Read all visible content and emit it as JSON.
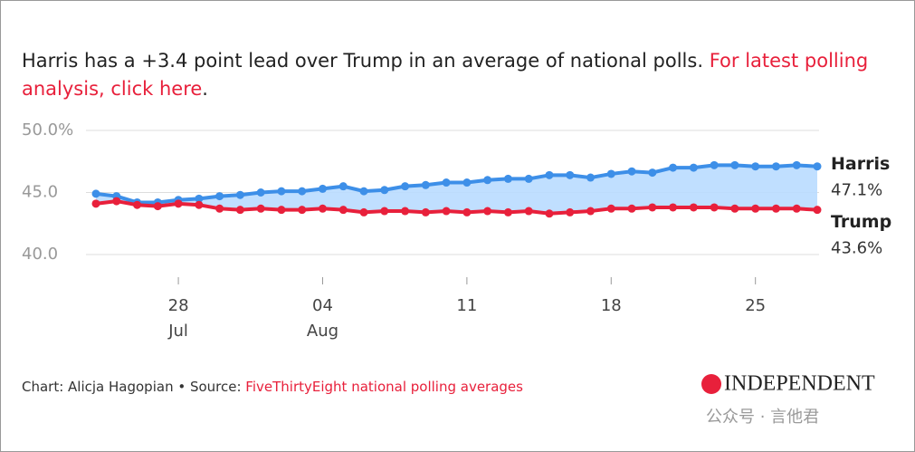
{
  "chart_data": {
    "type": "line",
    "title": "Harris has a +3.4 point lead over Trump in an average of national polls.",
    "title_link": "For latest polling analysis, click here",
    "title_end": ".",
    "categories": [
      null,
      null,
      null,
      null,
      "28",
      null,
      null,
      null,
      null,
      null,
      null,
      "04",
      null,
      null,
      null,
      null,
      null,
      null,
      "11",
      null,
      null,
      null,
      null,
      null,
      null,
      "18",
      null,
      null,
      null,
      null,
      null,
      null,
      "25",
      null,
      null,
      null
    ],
    "category_months": [
      null,
      null,
      null,
      null,
      "Jul",
      null,
      null,
      null,
      null,
      null,
      null,
      "Aug",
      null,
      null,
      null,
      null,
      null,
      null,
      null,
      null,
      null,
      null,
      null,
      null,
      null,
      null,
      null,
      null,
      null,
      null,
      null,
      null,
      null,
      null,
      null,
      null
    ],
    "series": [
      {
        "name": "Harris",
        "color": "#3d8fe8",
        "values": [
          44.9,
          44.7,
          44.2,
          44.2,
          44.4,
          44.5,
          44.7,
          44.8,
          45.0,
          45.1,
          45.1,
          45.3,
          45.5,
          45.1,
          45.2,
          45.5,
          45.6,
          45.8,
          45.8,
          46.0,
          46.1,
          46.1,
          46.4,
          46.4,
          46.2,
          46.5,
          46.7,
          46.6,
          47.0,
          47.0,
          47.2,
          47.2,
          47.1,
          47.1,
          47.2,
          47.1
        ],
        "value_labels": [
          null,
          null,
          null,
          null,
          null,
          null,
          null,
          null,
          null,
          null,
          null,
          null,
          null,
          null,
          null,
          null,
          null,
          null,
          null,
          null,
          null,
          null,
          null,
          null,
          null,
          null,
          null,
          null,
          null,
          null,
          null,
          null,
          null,
          null,
          null,
          "47.1%"
        ]
      },
      {
        "name": "Trump",
        "color": "#e8203b",
        "values": [
          44.1,
          44.3,
          44.0,
          43.9,
          44.1,
          44.0,
          43.7,
          43.6,
          43.7,
          43.6,
          43.6,
          43.7,
          43.6,
          43.4,
          43.5,
          43.5,
          43.4,
          43.5,
          43.4,
          43.5,
          43.4,
          43.5,
          43.3,
          43.4,
          43.5,
          43.7,
          43.7,
          43.8,
          43.8,
          43.8,
          43.8,
          43.7,
          43.7,
          43.7,
          43.7,
          43.6
        ],
        "value_labels": [
          null,
          null,
          null,
          null,
          null,
          null,
          null,
          null,
          null,
          null,
          null,
          null,
          null,
          null,
          null,
          null,
          null,
          null,
          null,
          null,
          null,
          null,
          null,
          null,
          null,
          null,
          null,
          null,
          null,
          null,
          null,
          null,
          null,
          null,
          null,
          "43.6%"
        ]
      }
    ],
    "area_color": "#b9dcff",
    "ylim": [
      39,
      50.5
    ],
    "yticks": [
      {
        "value": 40,
        "label": "40.0"
      },
      {
        "value": 45,
        "label": "45.0"
      },
      {
        "value": 50,
        "label": "50.0%"
      }
    ],
    "grid": true,
    "credit": "Chart: Alicja Hagopian • Source: ",
    "source": "FiveThirtyEight national polling averages",
    "logo": "INDEPENDENT",
    "watermark": "公众号 · 言他君"
  }
}
